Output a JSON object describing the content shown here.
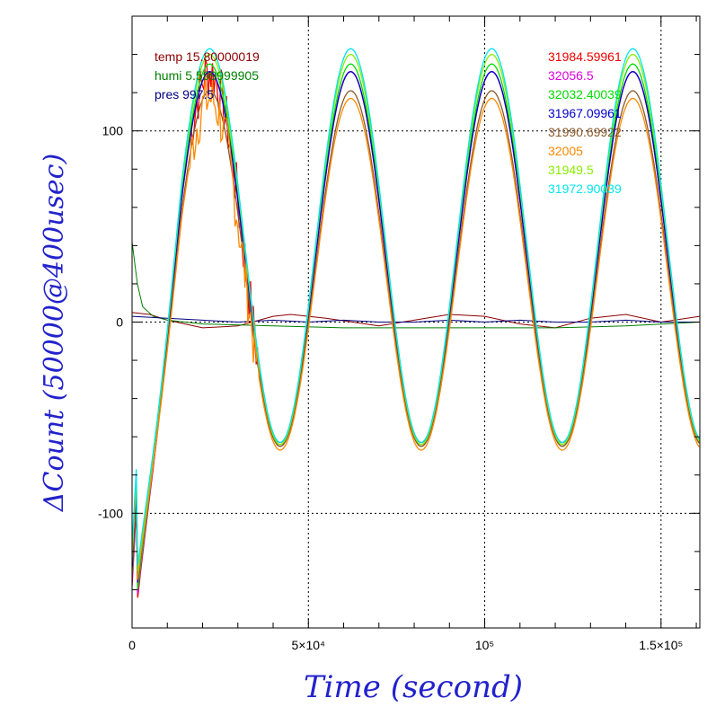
{
  "chart_data": {
    "type": "line",
    "xlabel": "Time (second)",
    "ylabel": "ΔCount (50000@400usec)",
    "xlim": [
      0,
      161000
    ],
    "ylim": [
      -160,
      160
    ],
    "x_ticks": [
      {
        "value": 0,
        "label": "0"
      },
      {
        "value": 50000,
        "label": "5×10⁴"
      },
      {
        "value": 100000,
        "label": "10⁵"
      },
      {
        "value": 150000,
        "label": "1.5×10⁵"
      }
    ],
    "y_ticks": [
      {
        "value": -100,
        "label": "-100"
      },
      {
        "value": 0,
        "label": "0"
      },
      {
        "value": 100,
        "label": "100"
      }
    ],
    "grid": true,
    "env_series": [
      {
        "name": "temp 15.80000019",
        "color": "#8b0000",
        "x": [
          0,
          5000,
          10000,
          20000,
          30000,
          40000,
          45000,
          55000,
          70000,
          80000,
          90000,
          100000,
          110000,
          120000,
          130000,
          140000,
          150000,
          161000
        ],
        "y": [
          5,
          4,
          1,
          -3,
          -2,
          3,
          4,
          2,
          -2,
          1,
          4,
          3,
          -1,
          -3,
          2,
          4,
          0,
          3
        ]
      },
      {
        "name": "humi 5.599999905",
        "color": "#008000",
        "x": [
          0,
          1500,
          3000,
          6000,
          10000,
          20000,
          40000,
          60000,
          80000,
          100000,
          120000,
          140000,
          161000
        ],
        "y": [
          42,
          20,
          8,
          3,
          1,
          -1,
          -2,
          -3,
          -3,
          -3,
          -3,
          -2,
          0
        ]
      },
      {
        "name": "pres 997.5",
        "color": "#000080",
        "x": [
          0,
          10000,
          20000,
          30000,
          40000,
          50000,
          60000,
          70000,
          80000,
          90000,
          100000,
          110000,
          120000,
          130000,
          140000,
          150000,
          161000
        ],
        "y": [
          3,
          2,
          1,
          0,
          1,
          0,
          1,
          0,
          0,
          1,
          0,
          1,
          0,
          0,
          1,
          0,
          0
        ]
      }
    ],
    "series": [
      {
        "name": "31984.59961",
        "color": "#ee0000",
        "amp": 98,
        "offset": 33,
        "noisy": true
      },
      {
        "name": "32056.5",
        "color": "#dd00dd",
        "amp": 98,
        "offset": 33
      },
      {
        "name": "32032.40039",
        "color": "#00dd00",
        "amp": 100,
        "offset": 35
      },
      {
        "name": "31967.09961",
        "color": "#0000cc",
        "amp": 97,
        "offset": 34
      },
      {
        "name": "31990.69922",
        "color": "#8b5a2b",
        "amp": 93,
        "offset": 28
      },
      {
        "name": "32005",
        "color": "#ff8800",
        "amp": 92,
        "offset": 25,
        "noisy": true
      },
      {
        "name": "31949.5",
        "color": "#88ee00",
        "amp": 102,
        "offset": 38
      },
      {
        "name": "31972.90039",
        "color": "#00e5ee",
        "amp": 103,
        "offset": 40
      }
    ],
    "period": 40000,
    "phase_peak_x": 22000
  }
}
